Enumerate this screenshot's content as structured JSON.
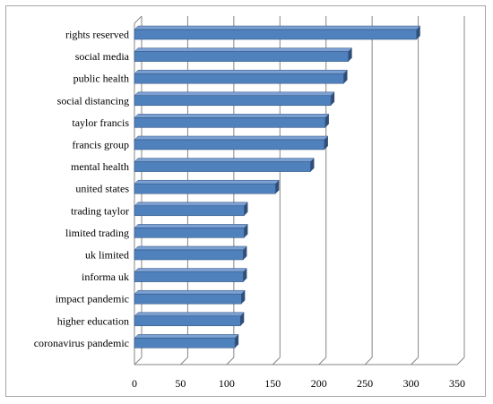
{
  "chart_data": {
    "type": "bar",
    "orientation": "horizontal",
    "style": "3d",
    "title": "",
    "xlabel": "",
    "ylabel": "",
    "categories": [
      "rights reserved",
      "social media",
      "public health",
      "social distancing",
      "taylor francis",
      "francis group",
      "mental health",
      "united states",
      "trading taylor",
      "limited trading",
      "uk limited",
      "informa uk",
      "impact pandemic",
      "higher education",
      "coronavirus pandemic"
    ],
    "values": [
      306,
      232,
      227,
      213,
      207,
      206,
      191,
      153,
      119,
      119,
      118,
      118,
      116,
      115,
      109
    ],
    "xlim": [
      0,
      350
    ],
    "xticks": [
      0,
      50,
      100,
      150,
      200,
      250,
      300,
      350
    ],
    "grid": "vertical",
    "legend": "none",
    "colors": {
      "bar": "#4f81bd",
      "bar_top": "#7ba0d3",
      "bar_edge": "#2f4f7a",
      "grid": "#868686"
    }
  }
}
